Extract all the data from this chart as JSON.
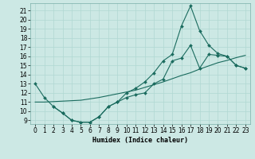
{
  "xlabel": "Humidex (Indice chaleur)",
  "bg_color": "#cce8e4",
  "line_color": "#1a6b5e",
  "xlim_min": -0.5,
  "xlim_max": 23.5,
  "ylim_min": 8.6,
  "ylim_max": 21.8,
  "xticks": [
    0,
    1,
    2,
    3,
    4,
    5,
    6,
    7,
    8,
    9,
    10,
    11,
    12,
    13,
    14,
    15,
    16,
    17,
    18,
    19,
    20,
    21,
    22,
    23
  ],
  "yticks": [
    9,
    10,
    11,
    12,
    13,
    14,
    15,
    16,
    17,
    18,
    19,
    20,
    21
  ],
  "line1_x": [
    0,
    1,
    2,
    3,
    4,
    5,
    6,
    7,
    8,
    9,
    10,
    11,
    12,
    13,
    14,
    15,
    16,
    17,
    18,
    19,
    20,
    21,
    22,
    23
  ],
  "line1_y": [
    13.0,
    11.5,
    10.5,
    9.8,
    9.0,
    8.8,
    8.8,
    9.4,
    10.5,
    11.0,
    12.0,
    12.5,
    13.2,
    14.2,
    15.5,
    16.2,
    19.3,
    21.5,
    18.8,
    17.2,
    16.3,
    16.0,
    15.0,
    14.7
  ],
  "line2_x": [
    0,
    1,
    2,
    3,
    4,
    5,
    6,
    7,
    8,
    9,
    10,
    11,
    12,
    13,
    14,
    15,
    16,
    17,
    18,
    19,
    20,
    21,
    22,
    23
  ],
  "line2_y": [
    11.0,
    11.0,
    11.05,
    11.1,
    11.15,
    11.2,
    11.35,
    11.5,
    11.7,
    11.9,
    12.1,
    12.3,
    12.6,
    12.9,
    13.2,
    13.55,
    13.9,
    14.2,
    14.6,
    14.95,
    15.3,
    15.55,
    15.85,
    16.1
  ],
  "line3_x": [
    2,
    3,
    4,
    5,
    6,
    7,
    8,
    9,
    10,
    11,
    12,
    13,
    14,
    15,
    16,
    17,
    18,
    19,
    20,
    21,
    22,
    23
  ],
  "line3_y": [
    10.5,
    9.8,
    9.0,
    8.8,
    8.8,
    9.4,
    10.5,
    11.0,
    11.5,
    11.8,
    12.0,
    13.0,
    13.5,
    15.5,
    15.8,
    17.2,
    14.7,
    16.2,
    16.1,
    16.0,
    15.0,
    14.7
  ],
  "tick_fontsize": 5.5,
  "xlabel_fontsize": 6.0,
  "grid_color": "#b0d8d2",
  "spine_color": "#7aafa8"
}
